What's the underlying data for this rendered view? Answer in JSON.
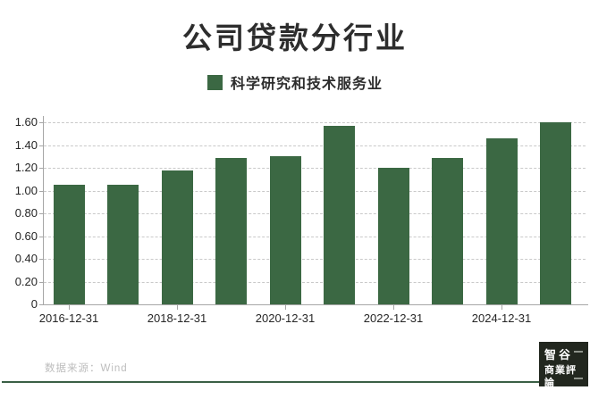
{
  "title": "公司贷款分行业",
  "legend": {
    "label": "科学研究和技术服务业",
    "color": "#3b6843"
  },
  "chart_data": {
    "type": "bar",
    "series": [
      {
        "name": "科学研究和技术服务业",
        "values": [
          1.05,
          1.05,
          1.18,
          1.29,
          1.3,
          1.57,
          1.2,
          1.29,
          1.46,
          1.6
        ]
      }
    ],
    "x_tick_labels": [
      "2016-12-31",
      "2018-12-31",
      "2020-12-31",
      "2022-12-31",
      "2024-12-31"
    ],
    "x_tick_bar_indices": [
      0,
      2,
      4,
      6,
      8
    ],
    "y_ticks": [
      {
        "v": 1.6,
        "label": "1.60"
      },
      {
        "v": 1.4,
        "label": "1.40"
      },
      {
        "v": 1.2,
        "label": "1.20"
      },
      {
        "v": 1.0,
        "label": "1.00"
      },
      {
        "v": 0.8,
        "label": "0.80"
      },
      {
        "v": 0.6,
        "label": "0.60"
      },
      {
        "v": 0.4,
        "label": "0.40"
      },
      {
        "v": 0.2,
        "label": "0.20"
      },
      {
        "v": 0,
        "label": "0"
      }
    ],
    "ylim": [
      0,
      1.65
    ],
    "grid": "horizontal-dashed",
    "legend_position": "top-center",
    "bar_color": "#3b6843",
    "title": "公司贷款分行业"
  },
  "footer": {
    "source": "数据来源：Wind",
    "divider_color": "#3a5f45",
    "logo": {
      "line1": "智谷",
      "line2": "商業評論"
    }
  }
}
